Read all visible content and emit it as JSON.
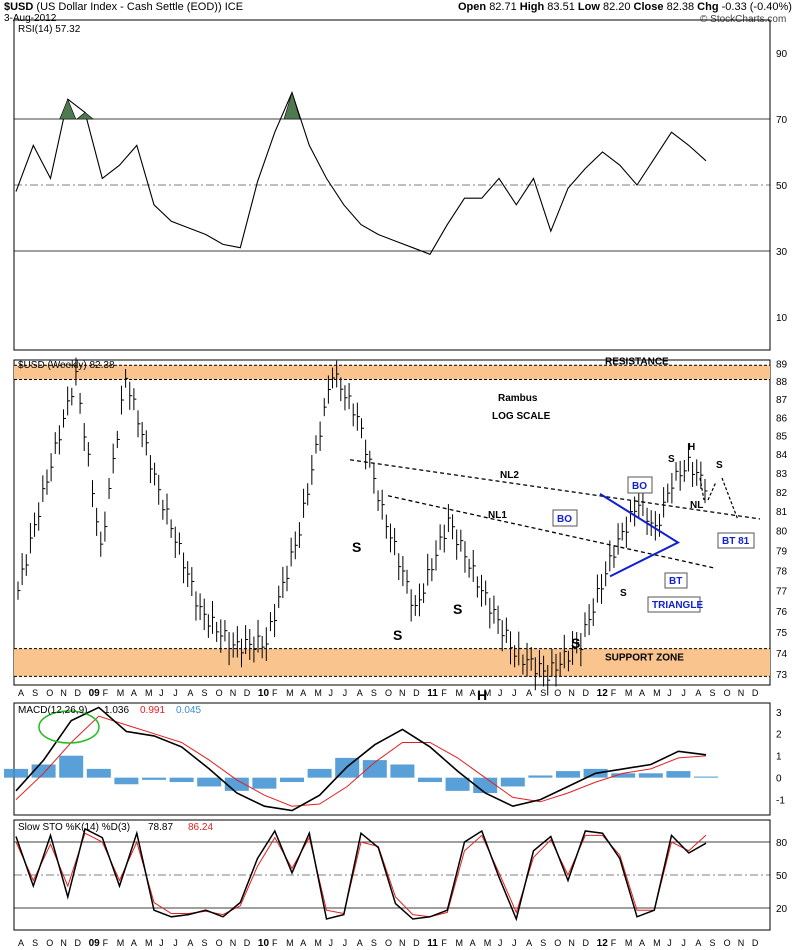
{
  "header": {
    "symbol": "$USD",
    "name": "(US Dollar Index - Cash Settle (EOD))",
    "exchange": "ICE",
    "date": "3-Aug-2012",
    "open_label": "Open",
    "open": "82.71",
    "high_label": "High",
    "high": "83.51",
    "low_label": "Low",
    "low": "82.20",
    "close_label": "Close",
    "close": "82.38",
    "chg_label": "Chg",
    "chg": "-0.33 (-0.40%)",
    "watermark": "© StockCharts.com"
  },
  "colors": {
    "price_bar": "#000000",
    "band": "#f9c48e",
    "rsi_fill": "#4f7a4f",
    "macd_signal": "#e02020",
    "macd_hist": "#3b8fd0",
    "annotation_blue": "#1020d0",
    "stoch_d": "#e02020"
  },
  "x_axis": {
    "labels": [
      "A",
      "S",
      "O",
      "N",
      "D",
      "09",
      "F",
      "M",
      "A",
      "M",
      "J",
      "J",
      "A",
      "S",
      "O",
      "N",
      "D",
      "10",
      "F",
      "M",
      "A",
      "M",
      "J",
      "J",
      "A",
      "S",
      "O",
      "N",
      "D",
      "11",
      "F",
      "M",
      "A",
      "M",
      "J",
      "J",
      "A",
      "S",
      "O",
      "N",
      "D",
      "12",
      "F",
      "M",
      "A",
      "M",
      "J",
      "J",
      "A",
      "S",
      "O",
      "N",
      "D"
    ],
    "bold_labels": [
      "09",
      "10",
      "11",
      "12"
    ]
  },
  "chart_data": [
    {
      "type": "line",
      "panel": "rsi",
      "legend": "RSI(14) 57.32",
      "y_ticks": [
        90,
        70,
        50,
        30,
        10
      ],
      "ylim": [
        0,
        100
      ],
      "reference_lines": [
        70,
        30
      ],
      "midline": 50,
      "overbought_fill": true,
      "x": [
        0,
        2,
        4,
        6,
        8,
        10,
        12,
        14,
        16,
        18,
        20,
        22,
        24,
        26,
        28,
        30,
        32,
        34,
        36,
        38,
        40,
        42,
        44,
        46,
        48,
        50,
        52
      ],
      "values": [
        48,
        62,
        52,
        76,
        72,
        52,
        56,
        62,
        44,
        39,
        37,
        35,
        32,
        31,
        51,
        66,
        78,
        62,
        52,
        44,
        38,
        35,
        33,
        31,
        29,
        38,
        46
      ]
    },
    {
      "type": "line",
      "panel": "rsi-cont",
      "x": [
        0,
        2,
        4,
        6,
        8,
        10,
        12,
        14,
        16,
        18,
        20,
        22,
        24,
        26
      ],
      "values": [
        46,
        52,
        44,
        52,
        36,
        49,
        55,
        60,
        56,
        50,
        58,
        66,
        62,
        57.32
      ]
    },
    {
      "type": "bar",
      "subtype": "ohlc",
      "panel": "price",
      "legend": "$USD (Weekly) 82.38",
      "scale": "log",
      "y_ticks": [
        89,
        88,
        87,
        86,
        85,
        84,
        83,
        82,
        81,
        80,
        79,
        78,
        77,
        76,
        75,
        74,
        73
      ],
      "ylim": [
        72.5,
        89.2
      ],
      "resistance_label": "RESISTANCE",
      "resistance_zone": [
        88.1,
        88.9
      ],
      "support_label": "SUPPORT ZONE",
      "support_zone": [
        72.9,
        74.2
      ],
      "title_annotation": "Rambus",
      "scale_annotation": "LOG SCALE",
      "key_points": [
        {
          "x": 0,
          "y": 77
        },
        {
          "x": 14,
          "y": 88.3
        },
        {
          "x": 20,
          "y": 79
        },
        {
          "x": 26,
          "y": 88.2
        },
        {
          "x": 34,
          "y": 82
        },
        {
          "x": 44,
          "y": 76
        },
        {
          "x": 52,
          "y": 74.3
        },
        {
          "x": 60,
          "y": 74.5
        },
        {
          "x": 68,
          "y": 80
        },
        {
          "x": 76,
          "y": 88.5
        },
        {
          "x": 82,
          "y": 86
        },
        {
          "x": 88,
          "y": 81
        },
        {
          "x": 96,
          "y": 76
        },
        {
          "x": 104,
          "y": 80.5
        },
        {
          "x": 112,
          "y": 77
        },
        {
          "x": 120,
          "y": 74
        },
        {
          "x": 128,
          "y": 73
        },
        {
          "x": 136,
          "y": 74.5
        },
        {
          "x": 144,
          "y": 79
        },
        {
          "x": 150,
          "y": 81.5
        },
        {
          "x": 154,
          "y": 80
        },
        {
          "x": 158,
          "y": 82.5
        },
        {
          "x": 162,
          "y": 83.5
        },
        {
          "x": 166,
          "y": 82.4
        }
      ],
      "annotations": [
        {
          "text": "S",
          "kind": "shoulder"
        },
        {
          "text": "S",
          "kind": "shoulder"
        },
        {
          "text": "S",
          "kind": "shoulder"
        },
        {
          "text": "H",
          "kind": "head"
        },
        {
          "text": "S",
          "kind": "shoulder"
        },
        {
          "text": "S",
          "kind": "shoulder"
        },
        {
          "text": "S",
          "kind": "shoulder"
        },
        {
          "text": "H",
          "kind": "head"
        },
        {
          "text": "S",
          "kind": "shoulder"
        },
        {
          "text": "NL2",
          "kind": "neckline"
        },
        {
          "text": "NL1",
          "kind": "neckline"
        },
        {
          "text": "NL",
          "kind": "neckline"
        },
        {
          "text": "BO",
          "kind": "callout"
        },
        {
          "text": "BO",
          "kind": "callout"
        },
        {
          "text": "BT",
          "kind": "callout"
        },
        {
          "text": "TRIANGLE",
          "kind": "callout"
        },
        {
          "text": "BT 81",
          "kind": "callout"
        }
      ]
    },
    {
      "type": "line",
      "panel": "macd",
      "legend_name": "MACD(12,26,9)",
      "legend_macd": "1.036",
      "legend_signal": "0.991",
      "legend_hist": "0.045",
      "y_ticks": [
        3,
        2,
        1,
        0,
        -1
      ],
      "ylim": [
        -1.7,
        3.4
      ],
      "x": [
        0,
        4,
        8,
        12,
        16,
        20,
        24,
        28,
        32,
        36,
        40,
        44,
        48,
        52,
        56,
        60,
        64,
        68,
        72,
        76,
        80,
        84,
        88,
        92,
        96,
        100
      ],
      "series": [
        {
          "name": "MACD",
          "values": [
            -0.6,
            0.8,
            2.6,
            3.2,
            2.1,
            1.9,
            1.4,
            0.4,
            -0.7,
            -1.3,
            -1.5,
            -0.8,
            0.5,
            1.5,
            2.2,
            1.4,
            0.3,
            -0.7,
            -1.3,
            -1.0,
            -0.4,
            0.2,
            0.4,
            0.6,
            1.2,
            1.04
          ]
        },
        {
          "name": "Signal",
          "values": [
            -1.0,
            0.2,
            1.6,
            2.8,
            2.4,
            2.0,
            1.6,
            0.8,
            -0.1,
            -0.8,
            -1.3,
            -1.2,
            -0.4,
            0.7,
            1.6,
            1.6,
            0.9,
            0.0,
            -0.9,
            -1.1,
            -0.7,
            -0.2,
            0.2,
            0.4,
            0.9,
            0.99
          ]
        },
        {
          "name": "Histogram",
          "values": [
            0.4,
            0.6,
            1.0,
            0.4,
            -0.3,
            -0.1,
            -0.2,
            -0.4,
            -0.6,
            -0.5,
            -0.2,
            0.4,
            0.9,
            0.8,
            0.6,
            -0.2,
            -0.6,
            -0.7,
            -0.4,
            0.1,
            0.3,
            0.4,
            0.2,
            0.2,
            0.3,
            0.05
          ]
        }
      ]
    },
    {
      "type": "line",
      "panel": "stochastic",
      "legend_name": "Slow STO %K(14) %D(3)",
      "legend_k": "78.87",
      "legend_d": "86.24",
      "y_ticks": [
        80,
        50,
        20
      ],
      "ylim": [
        0,
        100
      ],
      "reference_lines": [
        80,
        20
      ],
      "midline": 50,
      "x": [
        0,
        3,
        6,
        9,
        12,
        15,
        18,
        21,
        24,
        27,
        30,
        33,
        36,
        39,
        42,
        45,
        48,
        51,
        54,
        57,
        60,
        63,
        66,
        69,
        72,
        75,
        78,
        81,
        84,
        87,
        90,
        93,
        96,
        99,
        102,
        105,
        108,
        111,
        114,
        117,
        120
      ],
      "series": [
        {
          "name": "%K",
          "values": [
            85,
            40,
            86,
            30,
            92,
            84,
            40,
            88,
            18,
            12,
            14,
            18,
            12,
            25,
            65,
            90,
            52,
            88,
            10,
            14,
            88,
            75,
            24,
            10,
            12,
            18,
            80,
            90,
            48,
            10,
            72,
            85,
            45,
            90,
            88,
            65,
            12,
            18,
            86,
            70,
            78.87
          ]
        },
        {
          "name": "%D",
          "values": [
            80,
            45,
            78,
            40,
            88,
            80,
            45,
            80,
            25,
            15,
            15,
            17,
            14,
            22,
            58,
            84,
            56,
            84,
            18,
            15,
            80,
            76,
            30,
            14,
            12,
            16,
            72,
            86,
            52,
            16,
            66,
            82,
            50,
            86,
            86,
            68,
            18,
            18,
            80,
            72,
            86.24
          ]
        }
      ]
    }
  ]
}
